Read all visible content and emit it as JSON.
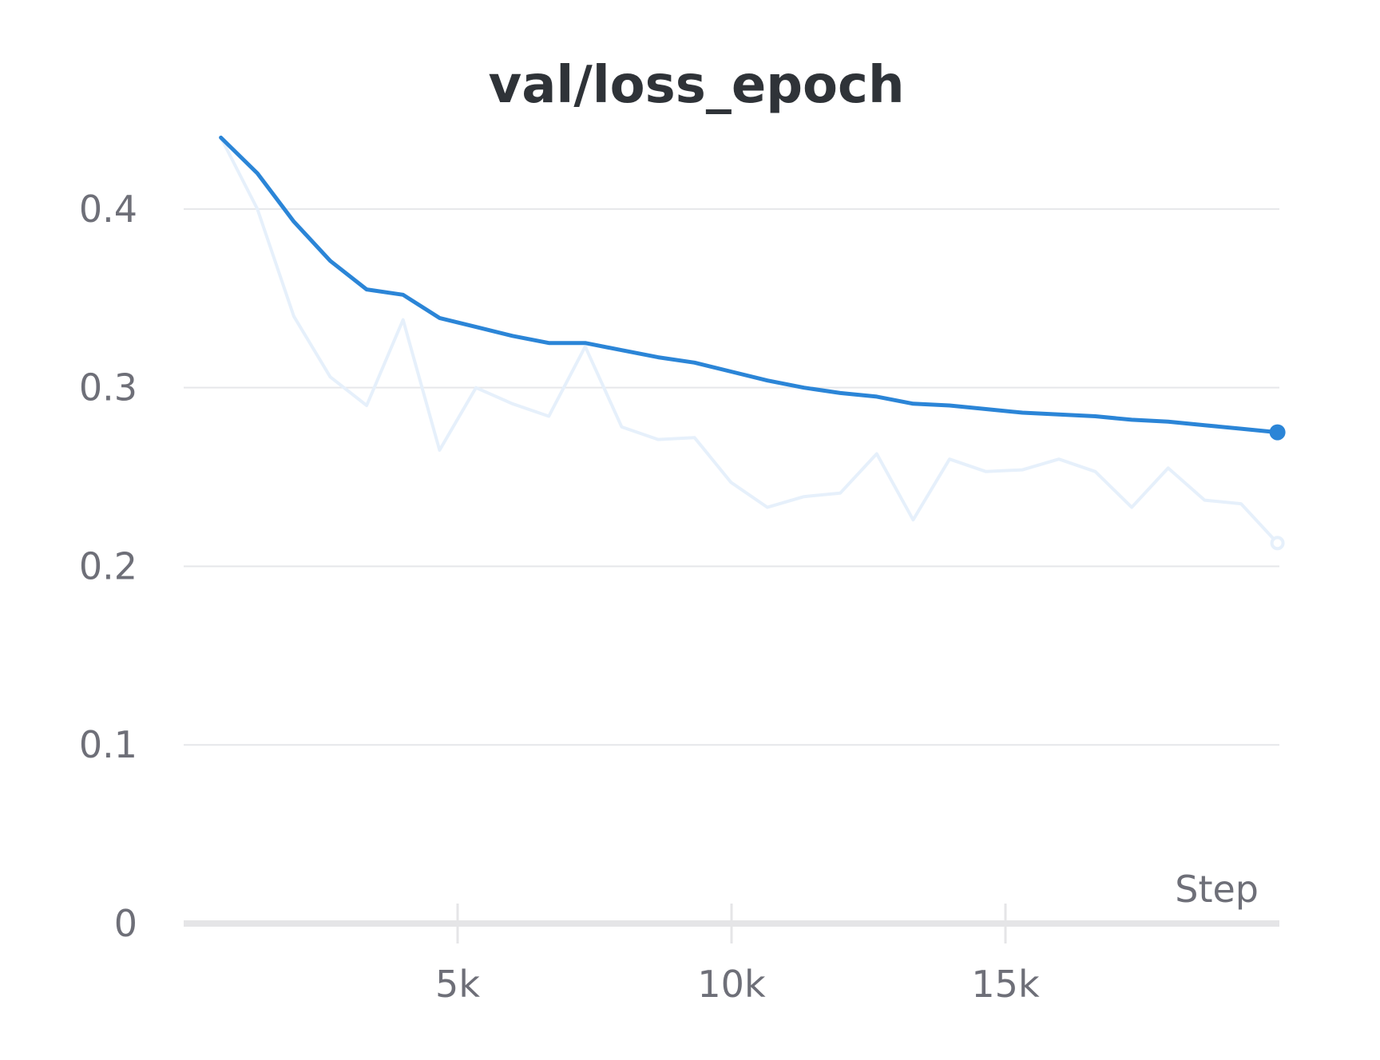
{
  "chart_data": {
    "type": "line",
    "title": "val/loss_epoch",
    "xlabel": "Step",
    "ylabel": "",
    "xlim": [
      0,
      20000
    ],
    "ylim": [
      0,
      0.45
    ],
    "x_ticks": [
      5000,
      10000,
      15000
    ],
    "x_tick_labels": [
      "5k",
      "10k",
      "15k"
    ],
    "y_ticks": [
      0,
      0.1,
      0.2,
      0.3,
      0.4
    ],
    "y_tick_labels": [
      "0",
      "0.1",
      "0.2",
      "0.3",
      "0.4"
    ],
    "grid": true,
    "legend": "none",
    "series": [
      {
        "role": "raw",
        "color": "#e6f0fb",
        "x": [
          680,
          1345,
          2010,
          2675,
          3340,
          4005,
          4670,
          5335,
          6000,
          6665,
          7330,
          7995,
          8660,
          9325,
          9990,
          10655,
          11320,
          11985,
          12650,
          13315,
          13980,
          14645,
          15310,
          15975,
          16640,
          17305,
          17970,
          18635,
          19300,
          19965
        ],
        "values": [
          0.44,
          0.4,
          0.34,
          0.306,
          0.29,
          0.338,
          0.265,
          0.3,
          0.291,
          0.284,
          0.323,
          0.278,
          0.271,
          0.272,
          0.247,
          0.233,
          0.239,
          0.241,
          0.263,
          0.226,
          0.26,
          0.253,
          0.254,
          0.26,
          0.253,
          0.233,
          0.255,
          0.237,
          0.235,
          0.213
        ]
      },
      {
        "role": "smoothed",
        "color": "#2b85d7",
        "x": [
          680,
          1345,
          2010,
          2675,
          3340,
          4005,
          4670,
          5335,
          6000,
          6665,
          7330,
          7995,
          8660,
          9325,
          9990,
          10655,
          11320,
          11985,
          12650,
          13315,
          13980,
          14645,
          15310,
          15975,
          16640,
          17305,
          17970,
          18635,
          19300,
          19965
        ],
        "values": [
          0.44,
          0.42,
          0.393,
          0.371,
          0.355,
          0.352,
          0.339,
          0.334,
          0.329,
          0.325,
          0.325,
          0.321,
          0.317,
          0.314,
          0.309,
          0.304,
          0.3,
          0.297,
          0.295,
          0.291,
          0.29,
          0.288,
          0.286,
          0.285,
          0.284,
          0.282,
          0.281,
          0.279,
          0.277,
          0.275
        ]
      }
    ]
  }
}
